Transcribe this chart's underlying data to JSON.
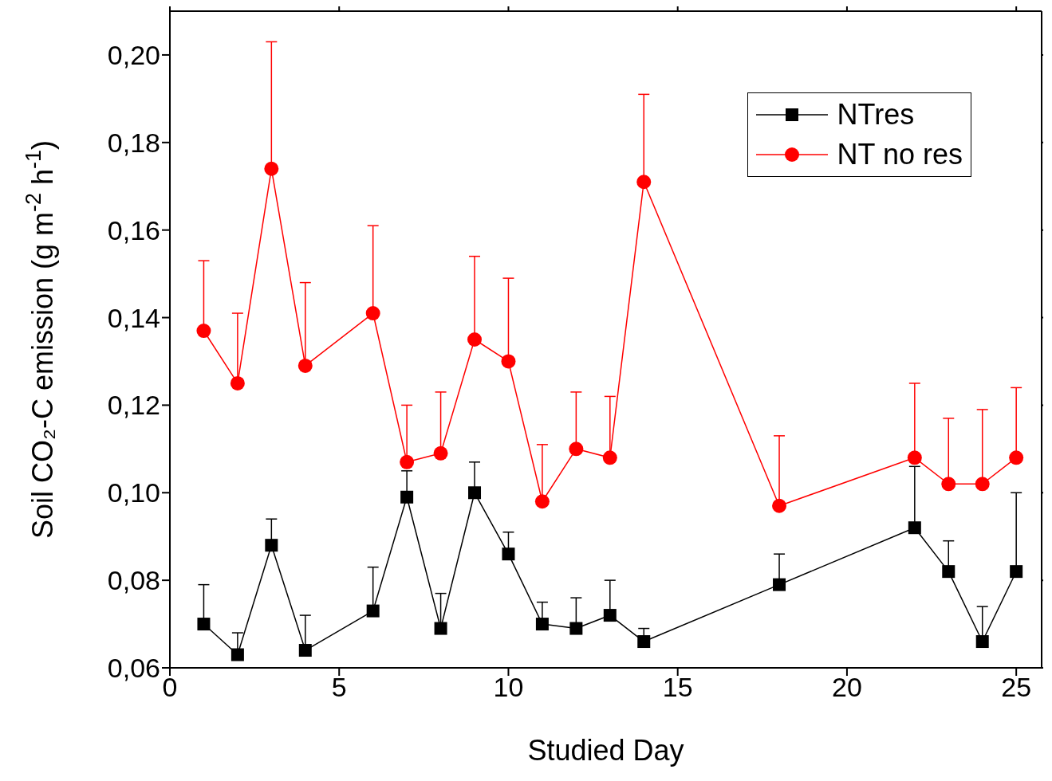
{
  "chart_data": {
    "type": "line",
    "xlabel": "Studied Day",
    "ylabel": "Soil CO₂-C emission (g m$^{-2}$ h$^{-1}$)",
    "xlim": [
      0,
      25.75
    ],
    "xticks": [
      0,
      5,
      10,
      15,
      20,
      25
    ],
    "ylim": [
      0.06,
      0.21
    ],
    "yticks": [
      {
        "value": 0.06,
        "label": "0,06"
      },
      {
        "value": 0.08,
        "label": "0,08"
      },
      {
        "value": 0.1,
        "label": "0,10"
      },
      {
        "value": 0.12,
        "label": "0,12"
      },
      {
        "value": 0.14,
        "label": "0,14"
      },
      {
        "value": 0.16,
        "label": "0,16"
      },
      {
        "value": 0.18,
        "label": "0,18"
      },
      {
        "value": 0.2,
        "label": "0,20"
      }
    ],
    "x": [
      1,
      2,
      3,
      4,
      6,
      7,
      8,
      9,
      10,
      11,
      12,
      13,
      14,
      18,
      22,
      23,
      24,
      25
    ],
    "legend": "top right",
    "line_style": "solid",
    "series": [
      {
        "name": "NTres",
        "color": "#000000",
        "marker": "square",
        "values": [
          0.07,
          0.063,
          0.088,
          0.064,
          0.073,
          0.099,
          0.069,
          0.1,
          0.086,
          0.07,
          0.069,
          0.072,
          0.066,
          0.079,
          0.092,
          0.082,
          0.066,
          0.082
        ],
        "errors": [
          [
            0.07,
            0.079
          ],
          [
            0.063,
            0.068
          ],
          [
            0.088,
            0.094
          ],
          [
            0.064,
            0.072
          ],
          [
            0.073,
            0.083
          ],
          [
            0.099,
            0.105
          ],
          [
            0.069,
            0.077
          ],
          [
            0.1,
            0.107
          ],
          [
            0.086,
            0.091
          ],
          [
            0.07,
            0.075
          ],
          [
            0.069,
            0.076
          ],
          [
            0.072,
            0.08
          ],
          [
            0.066,
            0.069
          ],
          [
            0.079,
            0.086
          ],
          [
            0.092,
            0.106
          ],
          [
            0.082,
            0.089
          ],
          [
            0.066,
            0.074
          ],
          [
            0.082,
            0.1
          ]
        ]
      },
      {
        "name": "NT no res",
        "color": "#ff0000",
        "marker": "circle",
        "values": [
          0.137,
          0.125,
          0.174,
          0.129,
          0.141,
          0.107,
          0.109,
          0.135,
          0.13,
          0.098,
          0.11,
          0.108,
          0.171,
          0.097,
          0.108,
          0.102,
          0.102,
          0.108
        ],
        "errors": [
          [
            0.137,
            0.153
          ],
          [
            0.125,
            0.141
          ],
          [
            0.174,
            0.203
          ],
          [
            0.129,
            0.148
          ],
          [
            0.141,
            0.161
          ],
          [
            0.107,
            0.12
          ],
          [
            0.109,
            0.123
          ],
          [
            0.135,
            0.154
          ],
          [
            0.13,
            0.149
          ],
          [
            0.098,
            0.111
          ],
          [
            0.11,
            0.123
          ],
          [
            0.108,
            0.122
          ],
          [
            0.171,
            0.191
          ],
          [
            0.097,
            0.113
          ],
          [
            0.108,
            0.125
          ],
          [
            0.102,
            0.117
          ],
          [
            0.102,
            0.119
          ],
          [
            0.108,
            0.124
          ]
        ]
      }
    ]
  }
}
